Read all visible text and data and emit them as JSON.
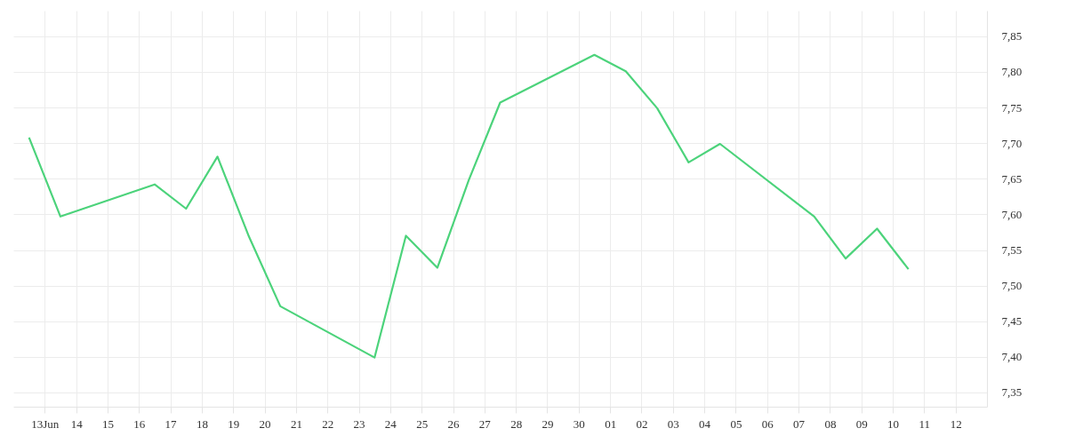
{
  "chart_data": {
    "type": "line",
    "x": [
      "--06-12T12:00",
      "--06-13T12:00",
      "--06-16T12:00",
      "--06-17T12:00",
      "--06-18T12:00",
      "--06-19T12:00",
      "--06-20T12:00",
      "--06-23T12:00",
      "--06-24T12:00",
      "--06-25T12:00",
      "--06-26T12:00",
      "--06-27T12:00",
      "--06-30T12:00",
      "--07-01T12:00",
      "--07-02T12:00",
      "--07-03T12:00",
      "--07-04T12:00",
      "--07-07T12:00",
      "--07-08T12:00",
      "--07-09T12:00",
      "--07-10T12:00"
    ],
    "series": [
      {
        "color": "#4cd37b",
        "values": [
          7.708,
          7.597,
          7.642,
          7.608,
          7.681,
          7.569,
          7.471,
          7.399,
          7.57,
          7.525,
          7.648,
          7.757,
          7.824,
          7.801,
          7.749,
          7.673,
          7.699,
          7.597,
          7.538,
          7.58,
          7.523
        ]
      }
    ],
    "xlim": [
      "--06-12",
      "--07-13"
    ],
    "xticks": [
      {
        "value": "--06-13",
        "label": "13Jun"
      },
      {
        "value": "--06-14",
        "label": "14"
      },
      {
        "value": "--06-15",
        "label": "15"
      },
      {
        "value": "--06-16",
        "label": "16"
      },
      {
        "value": "--06-17",
        "label": "17"
      },
      {
        "value": "--06-18",
        "label": "18"
      },
      {
        "value": "--06-19",
        "label": "19"
      },
      {
        "value": "--06-20",
        "label": "20"
      },
      {
        "value": "--06-21",
        "label": "21"
      },
      {
        "value": "--06-22",
        "label": "22"
      },
      {
        "value": "--06-23",
        "label": "23"
      },
      {
        "value": "--06-24",
        "label": "24"
      },
      {
        "value": "--06-25",
        "label": "25"
      },
      {
        "value": "--06-26",
        "label": "26"
      },
      {
        "value": "--06-27",
        "label": "27"
      },
      {
        "value": "--06-28",
        "label": "28"
      },
      {
        "value": "--06-29",
        "label": "29"
      },
      {
        "value": "--06-30",
        "label": "30"
      },
      {
        "value": "--07-01",
        "label": "01"
      },
      {
        "value": "--07-02",
        "label": "02"
      },
      {
        "value": "--07-03",
        "label": "03"
      },
      {
        "value": "--07-04",
        "label": "04"
      },
      {
        "value": "--07-05",
        "label": "05"
      },
      {
        "value": "--07-06",
        "label": "06"
      },
      {
        "value": "--07-07",
        "label": "07"
      },
      {
        "value": "--07-08",
        "label": "08"
      },
      {
        "value": "--07-09",
        "label": "09"
      },
      {
        "value": "--07-10",
        "label": "10"
      },
      {
        "value": "--07-11",
        "label": "11"
      },
      {
        "value": "--07-12",
        "label": "12"
      }
    ],
    "ylim": [
      7.33,
      7.886
    ],
    "yticks": [
      {
        "value": 7.35,
        "label": "7,35"
      },
      {
        "value": 7.4,
        "label": "7,40"
      },
      {
        "value": 7.45,
        "label": "7,45"
      },
      {
        "value": 7.5,
        "label": "7,50"
      },
      {
        "value": 7.55,
        "label": "7,55"
      },
      {
        "value": 7.6,
        "label": "7,60"
      },
      {
        "value": 7.65,
        "label": "7,65"
      },
      {
        "value": 7.7,
        "label": "7,70"
      },
      {
        "value": 7.75,
        "label": "7,75"
      },
      {
        "value": 7.8,
        "label": "7,80"
      },
      {
        "value": 7.85,
        "label": "7,85"
      }
    ],
    "grid": true,
    "marker": "none",
    "line_style": "solid"
  }
}
